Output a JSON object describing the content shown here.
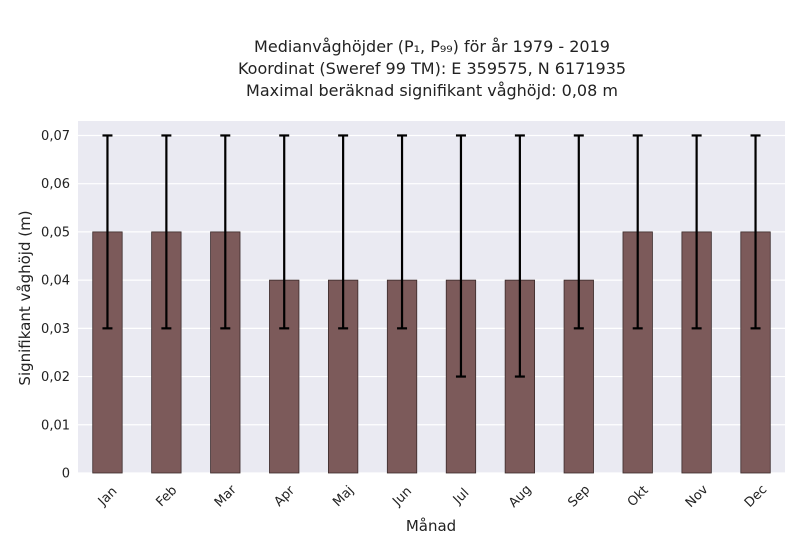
{
  "chart_data": {
    "type": "bar",
    "title_lines": [
      "Medianvåghöjder (P₁, P₉₉) för år 1979 - 2019",
      "Koordinat (Sweref 99 TM): E 359575, N 6171935",
      "Maximal beräknad signifikant våghöjd: 0,08 m"
    ],
    "xlabel": "Månad",
    "ylabel": "Signifikant våghöjd (m)",
    "categories": [
      "Jan",
      "Feb",
      "Mar",
      "Apr",
      "Maj",
      "Jun",
      "Jul",
      "Aug",
      "Sep",
      "Okt",
      "Nov",
      "Dec"
    ],
    "values": [
      0.05,
      0.05,
      0.05,
      0.04,
      0.04,
      0.04,
      0.04,
      0.04,
      0.04,
      0.05,
      0.05,
      0.05
    ],
    "p1": [
      0.03,
      0.03,
      0.03,
      0.03,
      0.03,
      0.03,
      0.02,
      0.02,
      0.03,
      0.03,
      0.03,
      0.03
    ],
    "p99": [
      0.07,
      0.07,
      0.07,
      0.07,
      0.07,
      0.07,
      0.07,
      0.07,
      0.07,
      0.07,
      0.07,
      0.07
    ],
    "ylim": [
      0,
      0.073
    ],
    "yticks": [
      0,
      0.01,
      0.02,
      0.03,
      0.04,
      0.05,
      0.06,
      0.07
    ],
    "ytick_labels": [
      "0",
      "0,01",
      "0,02",
      "0,03",
      "0,04",
      "0,05",
      "0,06",
      "0,07"
    ],
    "grid": true,
    "colors": {
      "bar": "#7c5a5a",
      "plot_background": "#eaeaf2",
      "error_bar": "#000000"
    }
  }
}
